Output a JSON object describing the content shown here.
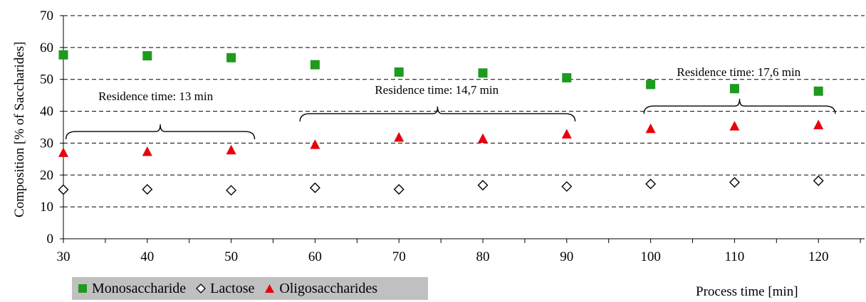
{
  "chart_data": {
    "type": "scatter",
    "xlabel": "Process time [min]",
    "ylabel": "Composition [% of Saccharides]",
    "xlim": [
      30,
      125
    ],
    "ylim": [
      0,
      70
    ],
    "xticks": [
      30,
      40,
      50,
      60,
      70,
      80,
      90,
      100,
      110,
      120
    ],
    "yticks": [
      0,
      10,
      20,
      30,
      40,
      50,
      60,
      70
    ],
    "grid": "horizontal dashed",
    "legend_position": "bottom-left",
    "series": [
      {
        "name": "Monosaccharide",
        "marker": "square",
        "color": "#1e9a1e",
        "x": [
          30,
          40,
          50,
          60,
          70,
          80,
          90,
          100,
          110,
          120
        ],
        "y": [
          57.7,
          57.4,
          56.8,
          54.6,
          52.3,
          52.0,
          50.5,
          48.4,
          47.1,
          46.3
        ]
      },
      {
        "name": "Lactose",
        "marker": "diamond-open",
        "color": "#000000",
        "x": [
          30,
          40,
          50,
          60,
          70,
          80,
          90,
          100,
          110,
          120
        ],
        "y": [
          15.4,
          15.5,
          15.2,
          16.0,
          15.5,
          16.8,
          16.4,
          17.2,
          17.7,
          18.2
        ]
      },
      {
        "name": "Oligosaccharides",
        "marker": "triangle",
        "color": "#e8000b",
        "x": [
          30,
          40,
          50,
          60,
          70,
          80,
          90,
          100,
          110,
          120
        ],
        "y": [
          27.0,
          27.3,
          27.8,
          29.5,
          31.8,
          31.4,
          32.8,
          34.5,
          35.3,
          35.7
        ]
      }
    ],
    "annotations": [
      {
        "text": "Residence time: 13 min",
        "x_start": 30.3,
        "x_end": 52.8,
        "bracket_y": 31.2,
        "text_x": 41.0,
        "text_y": 43.5
      },
      {
        "text": "Residence time: 14,7 min",
        "x_start": 58.2,
        "x_end": 91.0,
        "bracket_y": 36.8,
        "text_x": 74.5,
        "text_y": 45.5
      },
      {
        "text": "Residence time: 17,6 min",
        "x_start": 99.2,
        "x_end": 122.0,
        "bracket_y": 39.2,
        "text_x": 110.5,
        "text_y": 51.0
      }
    ]
  }
}
